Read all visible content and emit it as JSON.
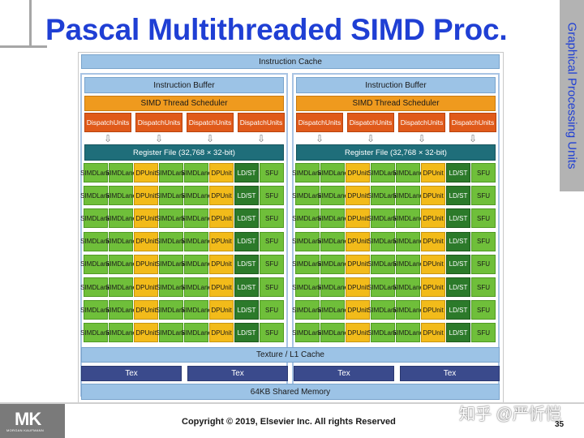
{
  "slide": {
    "title": "Pascal Multithreaded SIMD Proc.",
    "side_tab": "Graphical Processing Units",
    "copyright": "Copyright © 2019, Elsevier Inc. All rights Reserved",
    "page_number": "35",
    "logo_text": "MK",
    "logo_subtext": "MORGAN KAUFMANN",
    "watermark": "知乎 @严忻恺"
  },
  "diagram": {
    "instruction_cache": "Instruction Cache",
    "texture_cache": "Texture / L1 Cache",
    "tex_label": "Tex",
    "shared_memory": "64KB Shared Memory",
    "sm": {
      "instruction_buffer": "Instruction Buffer",
      "scheduler": "SIMD Thread Scheduler",
      "dispatch_line1": "Dispatch",
      "dispatch_line2": "Units",
      "register_file": "Register File (32,768 × 32-bit)",
      "arrow_glyph": "⇩",
      "row_count": 8,
      "row_units": [
        {
          "kind": "simd",
          "line1": "SIMD",
          "line2": "Lane"
        },
        {
          "kind": "simd",
          "line1": "SIMD",
          "line2": "Lane"
        },
        {
          "kind": "dp",
          "line1": "DP",
          "line2": "Unit"
        },
        {
          "kind": "simd",
          "line1": "SIMD",
          "line2": "Lane"
        },
        {
          "kind": "simd",
          "line1": "SIMD",
          "line2": "Lane"
        },
        {
          "kind": "dp",
          "line1": "DP",
          "line2": "Unit"
        },
        {
          "kind": "ldst",
          "line1": "LD/ST",
          "line2": ""
        },
        {
          "kind": "sfu",
          "line1": "SFU",
          "line2": ""
        }
      ]
    }
  },
  "colors": {
    "title_blue": "#1f3fd4",
    "cache_blue": "#9cc3e6",
    "scheduler_orange": "#ef9a1e",
    "dispatch_red": "#e05a1a",
    "register_teal": "#1f6e7a",
    "simd_green": "#6fbf3a",
    "dp_yellow": "#f2bb1a",
    "ldst_darkgreen": "#2c7a2a",
    "tex_navy": "#3a4a8c"
  }
}
